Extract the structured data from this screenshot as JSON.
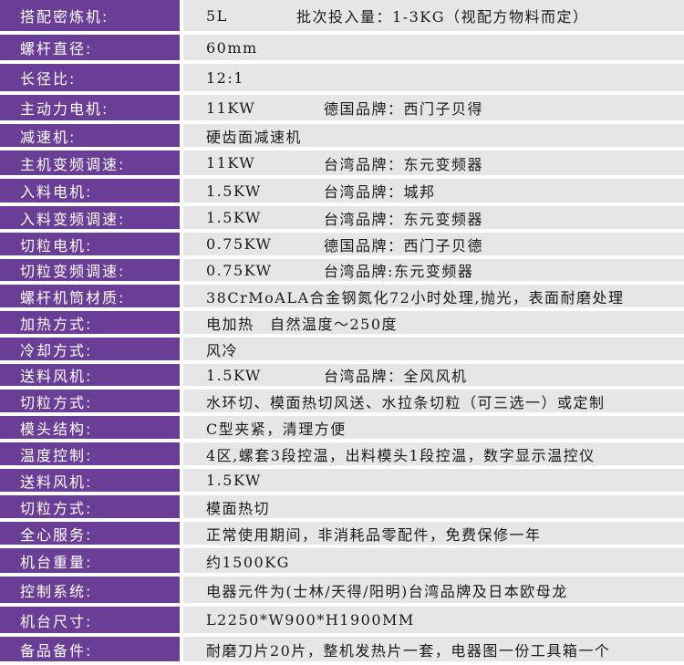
{
  "colors": {
    "label_bg": "#6a3d96",
    "value_bg": "#e7e5e8"
  },
  "rows": [
    {
      "label": "搭配密炼机:",
      "value": "5L",
      "extra": "批次投入量：1-3KG（视配方物料而定）"
    },
    {
      "label": "螺杆直径:",
      "value": "60mm"
    },
    {
      "label": "长径比:",
      "value": "12:1"
    },
    {
      "label": "主动力电机:",
      "value": "11KW",
      "extra": "德国品牌：西门子贝得"
    },
    {
      "label": "减速机:",
      "value": "硬齿面减速机"
    },
    {
      "label": "主机变频调速:",
      "value": "11KW",
      "extra": "台湾品牌：东元变频器"
    },
    {
      "label": "入料电机:",
      "value": "1.5KW",
      "extra": "台湾品牌：城邦"
    },
    {
      "label": "入料变频调速:",
      "value": "1.5KW",
      "extra": "台湾品牌：东元变频器"
    },
    {
      "label": "切粒电机:",
      "value": "0.75KW",
      "extra": "德国品牌：西门子贝德"
    },
    {
      "label": "切粒变频调速:",
      "value": "0.75KW",
      "extra": "台湾品牌:东元变频器"
    },
    {
      "label": "螺杆机筒材质:",
      "value": "38CrMoALA合金钢氮化72小时处理,抛光，表面耐磨处理"
    },
    {
      "label": "加热方式:",
      "value": "电加热　自然温度～250度"
    },
    {
      "label": "冷却方式:",
      "value": "风冷"
    },
    {
      "label": "送料风机:",
      "value": "1.5KW",
      "extra": "台湾品牌：全风风机"
    },
    {
      "label": "切粒方式:",
      "value": "水环切、模面热切风送、水拉条切粒（可三选一）或定制"
    },
    {
      "label": "模头结构:",
      "value": "C型夹紧，清理方便"
    },
    {
      "label": "温度控制:",
      "value": "4区,螺套3段控温，出料模头1段控温，数字显示温控仪"
    },
    {
      "label": "送料风机:",
      "value": "1.5KW"
    },
    {
      "label": "切粒方式:",
      "value": "模面热切"
    },
    {
      "label": "全心服务:",
      "value": "正常使用期间，非消耗品零配件，免费保修一年"
    },
    {
      "label": "机台重量:",
      "value": "约1500KG"
    },
    {
      "label": "控制系统:",
      "value": "电器元件为(士林/天得/阳明)台湾品牌及日本欧母龙"
    },
    {
      "label": "机台尺寸:",
      "value": "L2250*W900*H1900MM"
    },
    {
      "label": "备品备件:",
      "value": "耐磨刀片20片，整机发热片一套，电器图一份工具箱一个"
    }
  ]
}
